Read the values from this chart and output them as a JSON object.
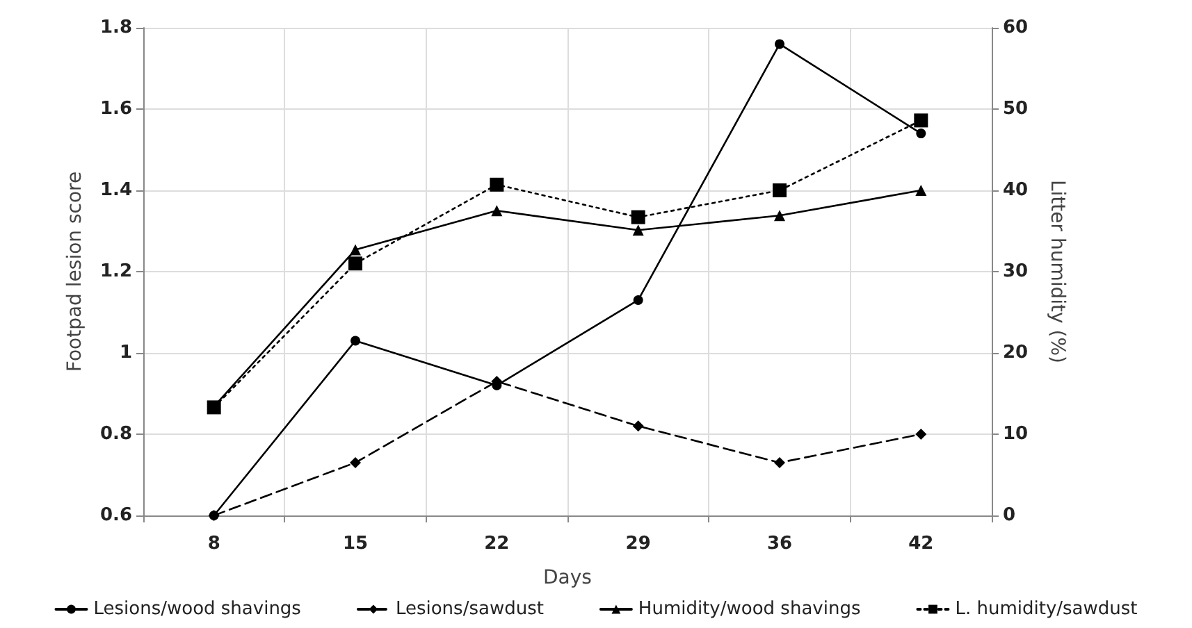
{
  "chart_data": {
    "type": "line",
    "xlabel": "Days",
    "ylabel": "Footpad lesion score",
    "y2label": "Litter humidity (%)",
    "categories": [
      "8",
      "15",
      "22",
      "29",
      "36",
      "42"
    ],
    "series": [
      {
        "name": "Lesions/wood shavings",
        "color": "#000000",
        "marker": "circle",
        "line_style": "solid",
        "values": [
          0.6,
          1.03,
          0.92,
          1.13,
          1.76,
          1.54
        ]
      },
      {
        "name": "Lesions/sawdust",
        "color": "#000000",
        "marker": "diamond",
        "line_style": "dashed",
        "values": [
          0.6,
          0.73,
          0.93,
          0.82,
          0.73,
          0.8
        ]
      },
      {
        "name": "Humidity/wood shavings",
        "color": "#000000",
        "marker": "triangle",
        "line_style": "solid",
        "axis": "y2",
        "values": [
          13.4,
          32.7,
          37.5,
          35.1,
          36.9,
          40
        ]
      },
      {
        "name": "L. humidity/sawdust",
        "color": "#000000",
        "marker": "square",
        "line_style": "dotted",
        "axis": "y2",
        "values": [
          13.3,
          31,
          40.7,
          36.7,
          40,
          48.6
        ]
      }
    ],
    "ylim": [
      0.6,
      1.8
    ],
    "yticks": [
      0.6,
      0.8,
      1,
      1.2,
      1.4,
      1.6,
      1.8
    ],
    "y2lim": [
      0,
      60
    ],
    "y2ticks": [
      0,
      10,
      20,
      30,
      40,
      50,
      60
    ],
    "grid": true,
    "legend": "bottom"
  }
}
